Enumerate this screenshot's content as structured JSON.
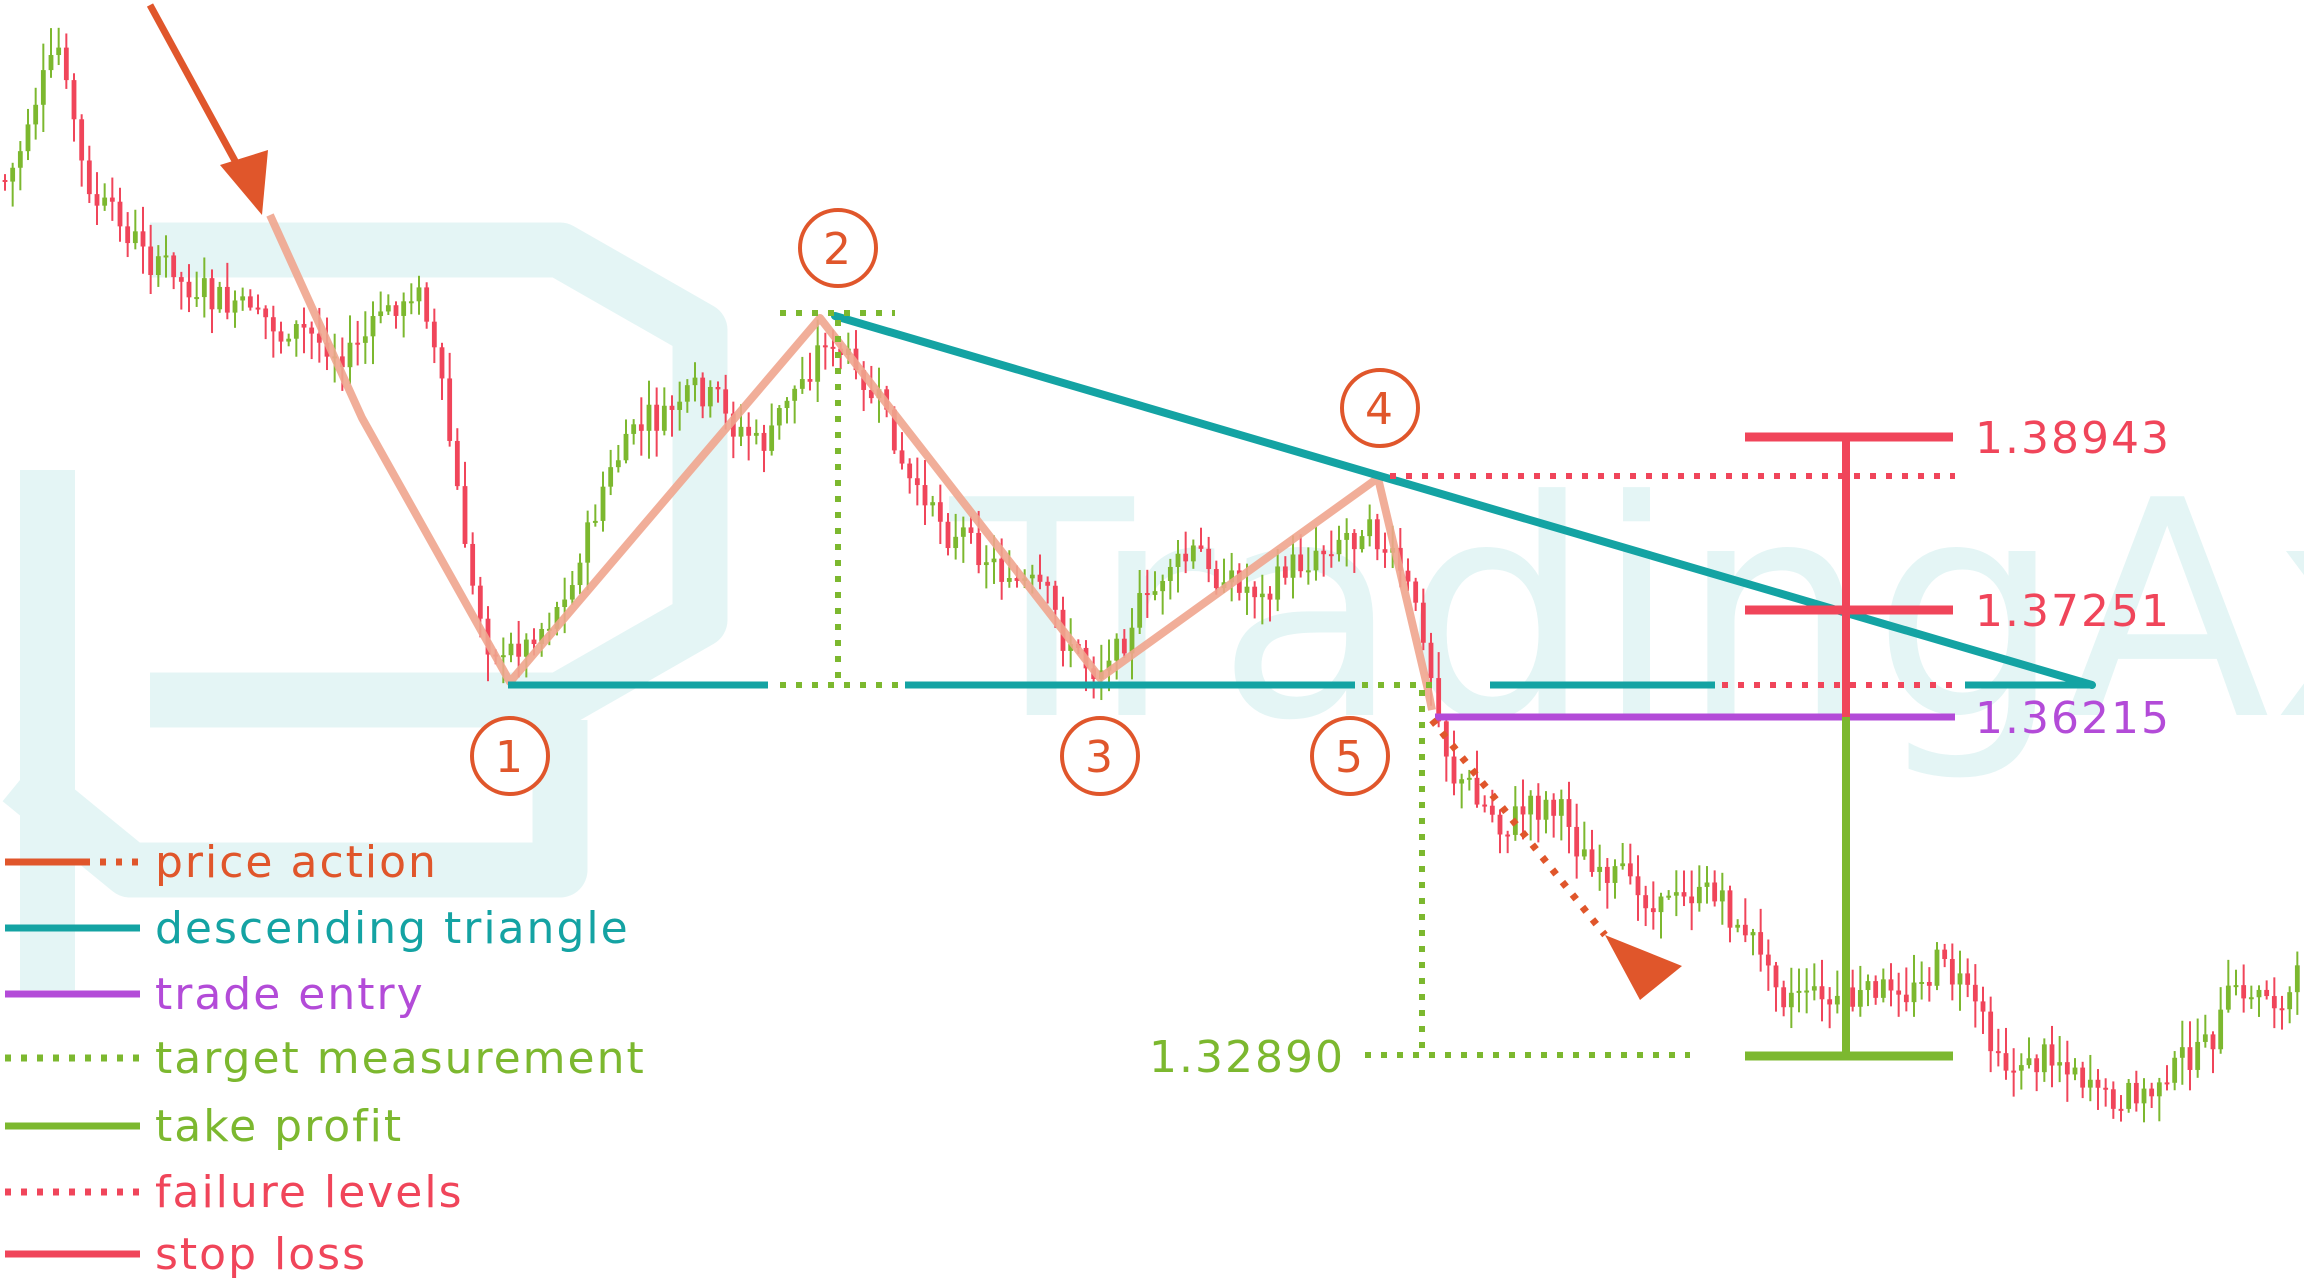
{
  "colors": {
    "bull": "#7cb82f",
    "bear": "#f0455a",
    "price_action": "#e0562b",
    "price_zigzag": "#f0a58e",
    "triangle": "#14a3a3",
    "entry": "#b34bd8",
    "target": "#7cb82f",
    "take_profit": "#7cb82f",
    "failure": "#f0455a",
    "stop_loss": "#f0455a",
    "watermark": "#e4f5f5"
  },
  "watermark": {
    "text": "TradingAxe"
  },
  "pivots": [
    {
      "id": 1,
      "label": "1"
    },
    {
      "id": 2,
      "label": "2"
    },
    {
      "id": 3,
      "label": "3"
    },
    {
      "id": 4,
      "label": "4"
    },
    {
      "id": 5,
      "label": "5"
    }
  ],
  "price_labels": {
    "stop_loss": "1.38943",
    "failure": "1.37251",
    "entry": "1.36215",
    "target": "1.32890"
  },
  "legend": [
    {
      "key": "price_action",
      "label": "price action",
      "style": "solid-dotted"
    },
    {
      "key": "triangle",
      "label": "descending triangle",
      "style": "solid"
    },
    {
      "key": "entry",
      "label": "trade entry",
      "style": "solid"
    },
    {
      "key": "target",
      "label": "target measurement",
      "style": "dotted"
    },
    {
      "key": "take_profit",
      "label": "take profit",
      "style": "solid"
    },
    {
      "key": "failure",
      "label": "failure levels",
      "style": "dotted"
    },
    {
      "key": "stop_loss",
      "label": "stop loss",
      "style": "solid"
    }
  ],
  "chart_data": {
    "type": "candlestick",
    "title": "",
    "xlabel": "",
    "ylabel": "",
    "candle_count": 300,
    "levels": {
      "stop_loss": 1.38943,
      "failure": 1.37251,
      "entry": 1.36215,
      "target": 1.3289
    }
  }
}
